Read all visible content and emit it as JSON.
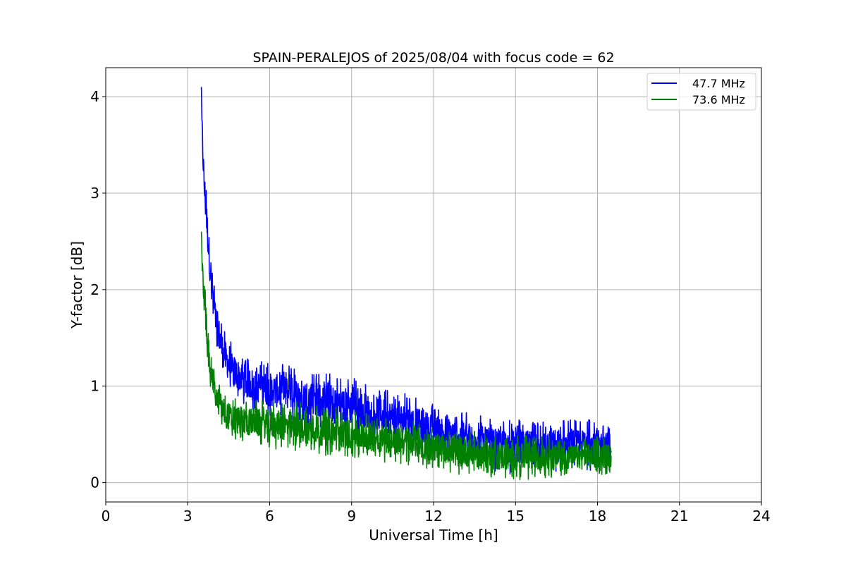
{
  "chart_data": {
    "type": "line",
    "title": "SPAIN-PERALEJOS of 2025/08/04 with focus code = 62",
    "xlabel": "Universal Time [h]",
    "ylabel": "Y-factor [dB]",
    "xlim": [
      0,
      24
    ],
    "ylim": [
      -0.2,
      4.3
    ],
    "xticks": [
      0,
      3,
      6,
      9,
      12,
      15,
      18,
      21,
      24
    ],
    "xtick_labels": [
      "0",
      "3",
      "6",
      "9",
      "12",
      "15",
      "18",
      "21",
      "24"
    ],
    "yticks": [
      0,
      1,
      2,
      3,
      4
    ],
    "ytick_labels": [
      "0",
      "1",
      "2",
      "3",
      "4"
    ],
    "grid": true,
    "legend_position": "top-right",
    "series": [
      {
        "name": "47.7 MHz",
        "color": "#0000ff",
        "x": [
          3.5,
          3.6,
          3.8,
          4.0,
          4.3,
          4.6,
          5.0,
          5.5,
          6.0,
          7.0,
          8.0,
          9.0,
          10.0,
          11.0,
          12.0,
          13.0,
          14.0,
          15.0,
          16.0,
          17.0,
          18.0,
          18.5
        ],
        "y": [
          4.05,
          3.2,
          2.35,
          1.8,
          1.45,
          1.28,
          1.15,
          1.05,
          1.0,
          0.95,
          0.88,
          0.82,
          0.75,
          0.68,
          0.6,
          0.53,
          0.48,
          0.44,
          0.42,
          0.41,
          0.41,
          0.41
        ],
        "y_min": [
          3.6,
          2.8,
          2.0,
          1.45,
          1.05,
          0.9,
          0.8,
          0.72,
          0.68,
          0.62,
          0.55,
          0.48,
          0.42,
          0.35,
          0.28,
          0.22,
          0.12,
          0.08,
          0.08,
          0.12,
          0.12,
          0.18
        ],
        "y_max": [
          4.1,
          3.4,
          2.6,
          2.0,
          1.62,
          1.45,
          1.35,
          1.28,
          1.25,
          1.2,
          1.15,
          1.1,
          1.0,
          0.92,
          0.82,
          0.75,
          0.68,
          0.65,
          0.65,
          0.65,
          0.65,
          0.6
        ]
      },
      {
        "name": "73.6 MHz",
        "color": "#008000",
        "x": [
          3.5,
          3.6,
          3.8,
          4.0,
          4.3,
          4.6,
          5.0,
          5.5,
          6.0,
          7.0,
          8.0,
          9.0,
          10.0,
          11.0,
          12.0,
          13.0,
          14.0,
          15.0,
          16.0,
          17.0,
          18.0,
          18.5
        ],
        "y": [
          2.55,
          1.95,
          1.3,
          0.92,
          0.75,
          0.66,
          0.62,
          0.6,
          0.58,
          0.56,
          0.52,
          0.48,
          0.44,
          0.4,
          0.36,
          0.32,
          0.3,
          0.28,
          0.27,
          0.27,
          0.28,
          0.28
        ],
        "y_min": [
          2.3,
          1.65,
          1.05,
          0.7,
          0.5,
          0.42,
          0.4,
          0.38,
          0.35,
          0.32,
          0.28,
          0.25,
          0.22,
          0.18,
          0.14,
          0.08,
          0.04,
          0.03,
          0.04,
          0.05,
          0.06,
          0.08
        ],
        "y_max": [
          2.6,
          2.15,
          1.5,
          1.12,
          0.98,
          0.9,
          0.88,
          0.86,
          0.85,
          0.84,
          0.8,
          0.75,
          0.7,
          0.65,
          0.6,
          0.56,
          0.53,
          0.5,
          0.48,
          0.47,
          0.48,
          0.48
        ]
      }
    ]
  }
}
